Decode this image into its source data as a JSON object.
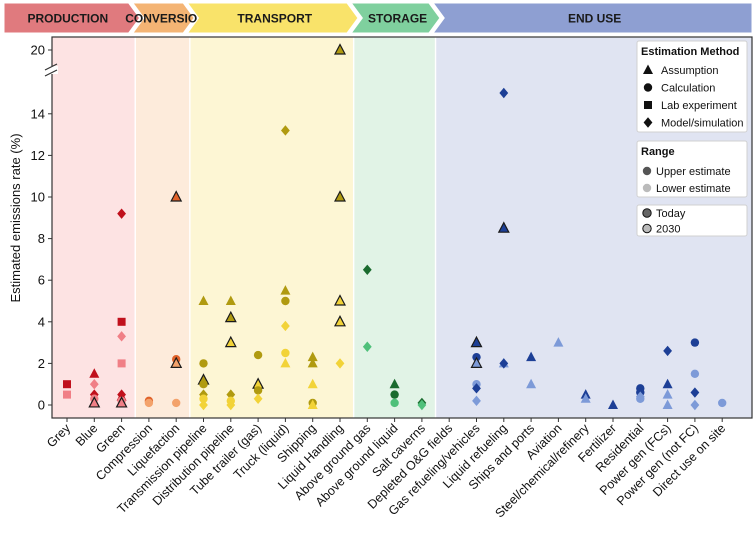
{
  "chart_data": {
    "type": "scatter",
    "ylabel": "Estimated emissions rate (%)",
    "y_ticks": [
      "0",
      "2",
      "4",
      "6",
      "8",
      "10",
      "12",
      "14",
      "20"
    ],
    "ylim": [
      0,
      20
    ],
    "y_axis_break": [
      15.5,
      19.5
    ],
    "sections": [
      {
        "label": "PRODUCTION",
        "color": "#e07a7e",
        "bg": "#fde3e3",
        "from": 0,
        "to": 2
      },
      {
        "label": "CONVERSION",
        "color": "#f4b474",
        "bg": "#fdebdb",
        "from": 3,
        "to": 4
      },
      {
        "label": "TRANSPORT",
        "color": "#f9e36a",
        "bg": "#fdf6d4",
        "from": 5,
        "to": 10
      },
      {
        "label": "STORAGE",
        "color": "#7fd09e",
        "bg": "#e1f3e6",
        "from": 11,
        "to": 13
      },
      {
        "label": "END USE",
        "color": "#8e9fd2",
        "bg": "#e0e4f2",
        "from": 14,
        "to": 24
      }
    ],
    "categories": [
      "Grey",
      "Blue",
      "Green",
      "Compression",
      "Liquefaction",
      "Transmission pipeline",
      "Distribution pipeline",
      "Tube trailer (gas)",
      "Truck (liquid)",
      "Shipping",
      "Liquid Handling",
      "Above ground gas",
      "Above ground liquid",
      "Salt caverns",
      "Depleted O&G fields",
      "Gas refueling/vehicles",
      "Liquid refueling",
      "Ships and ports",
      "Aviation",
      "Steel/chemical/refinery",
      "Fertilizer",
      "Residential",
      "Power gen (FCs)",
      "Power gen (not FC)",
      "Direct use on site"
    ],
    "category_sections": [
      0,
      0,
      0,
      1,
      1,
      2,
      2,
      2,
      2,
      2,
      2,
      3,
      3,
      3,
      3,
      4,
      4,
      4,
      4,
      4,
      4,
      4,
      4,
      4,
      4
    ],
    "palettes": [
      {
        "upper": "#c0101c",
        "lower": "#f07f86"
      },
      {
        "upper": "#e0622a",
        "lower": "#f3a26b"
      },
      {
        "upper": "#b09a10",
        "lower": "#f2d338"
      },
      {
        "upper": "#1a6b2e",
        "lower": "#4fc07a"
      },
      {
        "upper": "#1d3f96",
        "lower": "#7d9ad8"
      }
    ],
    "legend": {
      "method_title": "Estimation Method",
      "methods": [
        {
          "shape": "triangle",
          "label": "Assumption"
        },
        {
          "shape": "circle",
          "label": "Calculation"
        },
        {
          "shape": "square",
          "label": "Lab experiment"
        },
        {
          "shape": "diamond",
          "label": "Model/simulation"
        }
      ],
      "range_title": "Range",
      "ranges": [
        {
          "tone": "upper",
          "label": "Upper estimate",
          "color": "#555555"
        },
        {
          "tone": "lower",
          "label": "Lower estimate",
          "color": "#bbbbbb"
        }
      ],
      "times": [
        {
          "key": "today",
          "label": "Today"
        },
        {
          "key": "2030",
          "label": "2030"
        }
      ]
    },
    "points": [
      {
        "cat": 0,
        "y": 1.0,
        "shape": "square",
        "tone": "upper"
      },
      {
        "cat": 0,
        "y": 0.5,
        "shape": "square",
        "tone": "lower"
      },
      {
        "cat": 1,
        "y": 1.5,
        "shape": "triangle",
        "tone": "upper"
      },
      {
        "cat": 1,
        "y": 1.0,
        "shape": "diamond",
        "tone": "lower"
      },
      {
        "cat": 1,
        "y": 0.5,
        "shape": "diamond",
        "tone": "upper"
      },
      {
        "cat": 1,
        "y": 0.3,
        "shape": "circle",
        "tone": "lower"
      },
      {
        "cat": 1,
        "y": 0.1,
        "shape": "triangle",
        "tone": "lower",
        "outline": true
      },
      {
        "cat": 2,
        "y": 9.2,
        "shape": "diamond",
        "tone": "upper"
      },
      {
        "cat": 2,
        "y": 4.0,
        "shape": "square",
        "tone": "upper"
      },
      {
        "cat": 2,
        "y": 3.3,
        "shape": "diamond",
        "tone": "lower"
      },
      {
        "cat": 2,
        "y": 2.0,
        "shape": "square",
        "tone": "lower"
      },
      {
        "cat": 2,
        "y": 0.5,
        "shape": "diamond",
        "tone": "upper"
      },
      {
        "cat": 2,
        "y": 0.4,
        "shape": "triangle",
        "tone": "upper"
      },
      {
        "cat": 2,
        "y": 0.2,
        "shape": "circle",
        "tone": "lower"
      },
      {
        "cat": 2,
        "y": 0.1,
        "shape": "triangle",
        "tone": "lower",
        "outline": true
      },
      {
        "cat": 3,
        "y": 0.2,
        "shape": "circle",
        "tone": "upper"
      },
      {
        "cat": 3,
        "y": 0.1,
        "shape": "circle",
        "tone": "lower"
      },
      {
        "cat": 4,
        "y": 10.0,
        "shape": "triangle",
        "tone": "upper",
        "outline": true
      },
      {
        "cat": 4,
        "y": 2.2,
        "shape": "circle",
        "tone": "upper"
      },
      {
        "cat": 4,
        "y": 2.0,
        "shape": "triangle",
        "tone": "lower",
        "outline": true
      },
      {
        "cat": 4,
        "y": 0.1,
        "shape": "circle",
        "tone": "lower"
      },
      {
        "cat": 5,
        "y": 5.0,
        "shape": "triangle",
        "tone": "upper"
      },
      {
        "cat": 5,
        "y": 2.0,
        "shape": "circle",
        "tone": "upper"
      },
      {
        "cat": 5,
        "y": 1.2,
        "shape": "triangle",
        "tone": "upper",
        "outline": true
      },
      {
        "cat": 5,
        "y": 1.0,
        "shape": "circle",
        "tone": "upper"
      },
      {
        "cat": 5,
        "y": 0.5,
        "shape": "diamond",
        "tone": "upper"
      },
      {
        "cat": 5,
        "y": 0.3,
        "shape": "circle",
        "tone": "lower"
      },
      {
        "cat": 5,
        "y": 0.0,
        "shape": "diamond",
        "tone": "lower"
      },
      {
        "cat": 6,
        "y": 5.0,
        "shape": "triangle",
        "tone": "upper"
      },
      {
        "cat": 6,
        "y": 4.2,
        "shape": "triangle",
        "tone": "upper",
        "outline": true
      },
      {
        "cat": 6,
        "y": 3.0,
        "shape": "triangle",
        "tone": "lower",
        "outline": true
      },
      {
        "cat": 6,
        "y": 0.5,
        "shape": "diamond",
        "tone": "upper"
      },
      {
        "cat": 6,
        "y": 0.2,
        "shape": "circle",
        "tone": "lower"
      },
      {
        "cat": 6,
        "y": 0.0,
        "shape": "diamond",
        "tone": "lower"
      },
      {
        "cat": 7,
        "y": 2.4,
        "shape": "circle",
        "tone": "upper"
      },
      {
        "cat": 7,
        "y": 1.0,
        "shape": "triangle",
        "tone": "lower",
        "outline": true
      },
      {
        "cat": 7,
        "y": 0.7,
        "shape": "circle",
        "tone": "upper"
      },
      {
        "cat": 7,
        "y": 0.3,
        "shape": "diamond",
        "tone": "lower"
      },
      {
        "cat": 8,
        "y": 13.2,
        "shape": "diamond",
        "tone": "upper"
      },
      {
        "cat": 8,
        "y": 5.5,
        "shape": "triangle",
        "tone": "upper"
      },
      {
        "cat": 8,
        "y": 5.0,
        "shape": "circle",
        "tone": "upper"
      },
      {
        "cat": 8,
        "y": 3.8,
        "shape": "diamond",
        "tone": "lower"
      },
      {
        "cat": 8,
        "y": 2.5,
        "shape": "circle",
        "tone": "lower"
      },
      {
        "cat": 8,
        "y": 2.0,
        "shape": "triangle",
        "tone": "lower"
      },
      {
        "cat": 9,
        "y": 2.3,
        "shape": "triangle",
        "tone": "upper"
      },
      {
        "cat": 9,
        "y": 2.0,
        "shape": "triangle",
        "tone": "upper"
      },
      {
        "cat": 9,
        "y": 1.0,
        "shape": "triangle",
        "tone": "lower"
      },
      {
        "cat": 9,
        "y": 0.1,
        "shape": "circle",
        "tone": "upper"
      },
      {
        "cat": 9,
        "y": 0.0,
        "shape": "triangle",
        "tone": "lower"
      },
      {
        "cat": 10,
        "y": 20.0,
        "shape": "triangle",
        "tone": "upper",
        "outline": true
      },
      {
        "cat": 10,
        "y": 10.0,
        "shape": "triangle",
        "tone": "upper",
        "outline": true
      },
      {
        "cat": 10,
        "y": 5.0,
        "shape": "triangle",
        "tone": "lower",
        "outline": true
      },
      {
        "cat": 10,
        "y": 4.0,
        "shape": "triangle",
        "tone": "lower",
        "outline": true
      },
      {
        "cat": 10,
        "y": 2.0,
        "shape": "diamond",
        "tone": "lower"
      },
      {
        "cat": 11,
        "y": 6.5,
        "shape": "diamond",
        "tone": "upper"
      },
      {
        "cat": 11,
        "y": 2.8,
        "shape": "diamond",
        "tone": "lower"
      },
      {
        "cat": 12,
        "y": 1.0,
        "shape": "triangle",
        "tone": "upper"
      },
      {
        "cat": 12,
        "y": 0.5,
        "shape": "circle",
        "tone": "upper"
      },
      {
        "cat": 12,
        "y": 0.1,
        "shape": "circle",
        "tone": "lower"
      },
      {
        "cat": 13,
        "y": 0.1,
        "shape": "diamond",
        "tone": "upper"
      },
      {
        "cat": 13,
        "y": 0.0,
        "shape": "diamond",
        "tone": "lower"
      },
      {
        "cat": 15,
        "y": 3.0,
        "shape": "triangle",
        "tone": "upper",
        "outline": true
      },
      {
        "cat": 15,
        "y": 2.3,
        "shape": "circle",
        "tone": "upper"
      },
      {
        "cat": 15,
        "y": 2.0,
        "shape": "triangle",
        "tone": "lower",
        "outline": true
      },
      {
        "cat": 15,
        "y": 1.0,
        "shape": "circle",
        "tone": "lower"
      },
      {
        "cat": 15,
        "y": 0.8,
        "shape": "diamond",
        "tone": "upper"
      },
      {
        "cat": 15,
        "y": 0.2,
        "shape": "diamond",
        "tone": "lower"
      },
      {
        "cat": 16,
        "y": 15.0,
        "shape": "diamond",
        "tone": "upper"
      },
      {
        "cat": 16,
        "y": 8.5,
        "shape": "triangle",
        "tone": "upper",
        "outline": true
      },
      {
        "cat": 16,
        "y": 2.0,
        "shape": "triangle",
        "tone": "lower"
      },
      {
        "cat": 16,
        "y": 2.0,
        "shape": "diamond",
        "tone": "upper"
      },
      {
        "cat": 17,
        "y": 2.3,
        "shape": "triangle",
        "tone": "upper"
      },
      {
        "cat": 17,
        "y": 1.0,
        "shape": "triangle",
        "tone": "lower"
      },
      {
        "cat": 18,
        "y": 3.0,
        "shape": "triangle",
        "tone": "lower"
      },
      {
        "cat": 19,
        "y": 0.5,
        "shape": "triangle",
        "tone": "upper"
      },
      {
        "cat": 19,
        "y": 0.3,
        "shape": "triangle",
        "tone": "lower"
      },
      {
        "cat": 20,
        "y": 0.0,
        "shape": "triangle",
        "tone": "upper"
      },
      {
        "cat": 21,
        "y": 0.8,
        "shape": "circle",
        "tone": "upper"
      },
      {
        "cat": 21,
        "y": 0.6,
        "shape": "circle",
        "tone": "upper"
      },
      {
        "cat": 21,
        "y": 0.4,
        "shape": "diamond",
        "tone": "lower"
      },
      {
        "cat": 21,
        "y": 0.3,
        "shape": "circle",
        "tone": "lower"
      },
      {
        "cat": 22,
        "y": 2.6,
        "shape": "diamond",
        "tone": "upper"
      },
      {
        "cat": 22,
        "y": 1.0,
        "shape": "triangle",
        "tone": "upper"
      },
      {
        "cat": 22,
        "y": 0.5,
        "shape": "triangle",
        "tone": "lower"
      },
      {
        "cat": 22,
        "y": 0.0,
        "shape": "triangle",
        "tone": "lower"
      },
      {
        "cat": 23,
        "y": 3.0,
        "shape": "circle",
        "tone": "upper"
      },
      {
        "cat": 23,
        "y": 1.5,
        "shape": "circle",
        "tone": "lower"
      },
      {
        "cat": 23,
        "y": 0.6,
        "shape": "diamond",
        "tone": "upper"
      },
      {
        "cat": 23,
        "y": 0.0,
        "shape": "diamond",
        "tone": "lower"
      },
      {
        "cat": 24,
        "y": 0.1,
        "shape": "circle",
        "tone": "lower"
      }
    ]
  }
}
